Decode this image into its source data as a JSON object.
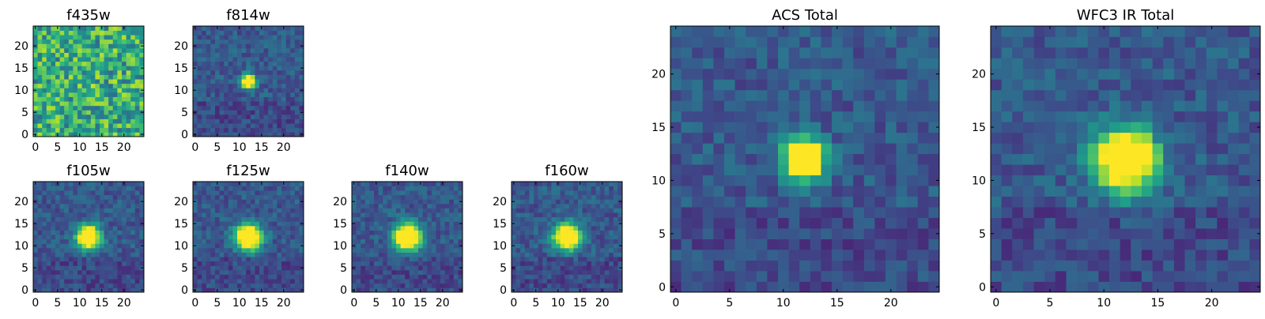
{
  "chart_data": [
    {
      "type": "heatmap",
      "title": "f435w",
      "pattern": "noise",
      "xticks": [
        0,
        5,
        10,
        15,
        20
      ],
      "yticks": [
        0,
        5,
        10,
        15,
        20
      ],
      "xlim": [
        -0.5,
        24.5
      ],
      "ylim": [
        -0.5,
        24.5
      ],
      "grid": false,
      "colormap": "viridis",
      "source": {
        "peak": [
          12,
          12
        ],
        "sigma": 1.3,
        "amp": 0.35
      }
    },
    {
      "type": "heatmap",
      "title": "f814w",
      "pattern": "compact",
      "xticks": [
        0,
        5,
        10,
        15,
        20
      ],
      "yticks": [
        0,
        5,
        10,
        15,
        20
      ],
      "xlim": [
        -0.5,
        24.5
      ],
      "ylim": [
        -0.5,
        24.5
      ],
      "grid": false,
      "colormap": "viridis",
      "source": {
        "peak": [
          12,
          12
        ],
        "sigma": 1.1,
        "amp": 1.0
      }
    },
    {
      "type": "heatmap",
      "title": "f105w",
      "pattern": "psf",
      "xticks": [
        0,
        5,
        10,
        15,
        20
      ],
      "yticks": [
        0,
        5,
        10,
        15,
        20
      ],
      "xlim": [
        -0.5,
        24.5
      ],
      "ylim": [
        -0.5,
        24.5
      ],
      "grid": false,
      "colormap": "viridis",
      "source": {
        "peak": [
          12,
          12
        ],
        "sigma": 1.8,
        "amp": 1.0
      }
    },
    {
      "type": "heatmap",
      "title": "f125w",
      "pattern": "psf",
      "xticks": [
        0,
        5,
        10,
        15,
        20
      ],
      "yticks": [
        0,
        5,
        10,
        15,
        20
      ],
      "xlim": [
        -0.5,
        24.5
      ],
      "ylim": [
        -0.5,
        24.5
      ],
      "grid": false,
      "colormap": "viridis",
      "source": {
        "peak": [
          12,
          12
        ],
        "sigma": 2.0,
        "amp": 1.0
      }
    },
    {
      "type": "heatmap",
      "title": "f140w",
      "pattern": "psf",
      "xticks": [
        0,
        5,
        10,
        15,
        20
      ],
      "yticks": [
        0,
        5,
        10,
        15,
        20
      ],
      "xlim": [
        -0.5,
        24.5
      ],
      "ylim": [
        -0.5,
        24.5
      ],
      "grid": false,
      "colormap": "viridis",
      "source": {
        "peak": [
          12,
          12
        ],
        "sigma": 2.1,
        "amp": 1.0
      }
    },
    {
      "type": "heatmap",
      "title": "f160w",
      "pattern": "psf",
      "xticks": [
        0,
        5,
        10,
        15,
        20
      ],
      "yticks": [
        0,
        5,
        10,
        15,
        20
      ],
      "xlim": [
        -0.5,
        24.5
      ],
      "ylim": [
        -0.5,
        24.5
      ],
      "grid": false,
      "colormap": "viridis",
      "source": {
        "peak": [
          12,
          12
        ],
        "sigma": 2.0,
        "amp": 1.0
      }
    },
    {
      "type": "heatmap",
      "title": "ACS Total",
      "pattern": "compact",
      "xticks": [
        0,
        5,
        10,
        15,
        20
      ],
      "yticks": [
        0,
        5,
        10,
        15,
        20
      ],
      "xlim": [
        -0.5,
        24.5
      ],
      "ylim": [
        -0.5,
        24.5
      ],
      "grid": false,
      "colormap": "viridis",
      "source": {
        "peak": [
          12,
          12
        ],
        "sigma": 1.3,
        "amp": 1.0
      }
    },
    {
      "type": "heatmap",
      "title": "WFC3 IR Total",
      "pattern": "psf",
      "xticks": [
        0,
        5,
        10,
        15,
        20
      ],
      "yticks": [
        0,
        5,
        10,
        15,
        20
      ],
      "xlim": [
        -0.5,
        24.5
      ],
      "ylim": [
        -0.5,
        24.5
      ],
      "grid": false,
      "colormap": "viridis",
      "source": {
        "peak": [
          12,
          12
        ],
        "sigma": 2.0,
        "amp": 1.0
      }
    }
  ]
}
